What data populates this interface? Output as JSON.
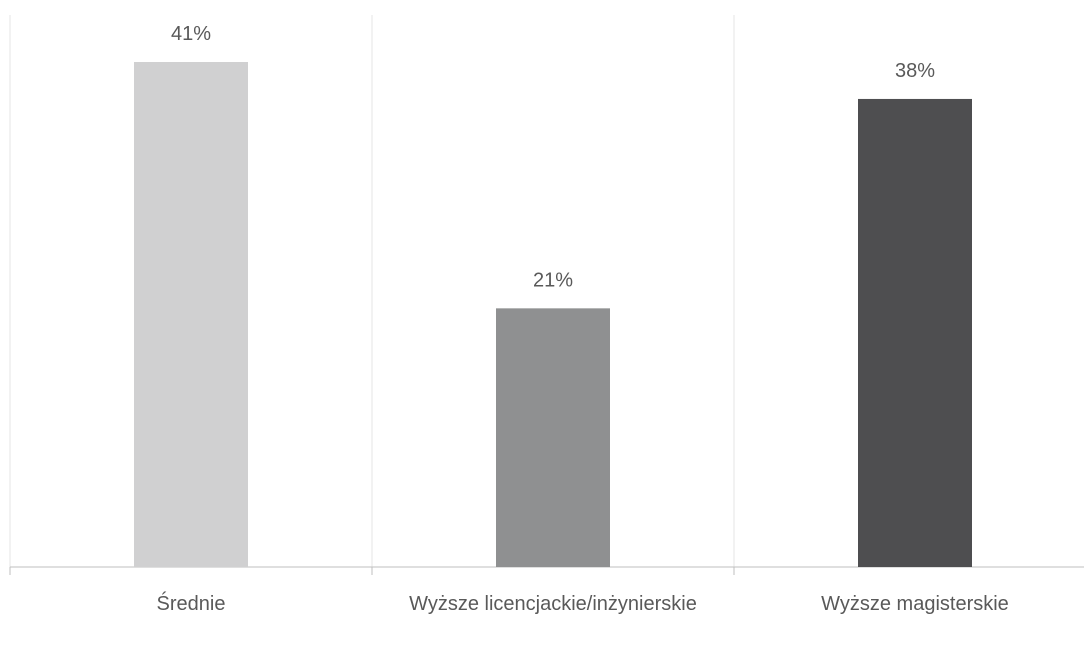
{
  "chart_data": {
    "type": "bar",
    "categories": [
      "Średnie",
      "Wyższe licencjackie/inżynierskie",
      "Wyższe magisterskie"
    ],
    "values": [
      41,
      21,
      38
    ],
    "value_labels": [
      "41%",
      "21%",
      "38%"
    ],
    "colors": [
      "#d0d0d1",
      "#8f9091",
      "#4e4e50"
    ],
    "grid": true
  }
}
